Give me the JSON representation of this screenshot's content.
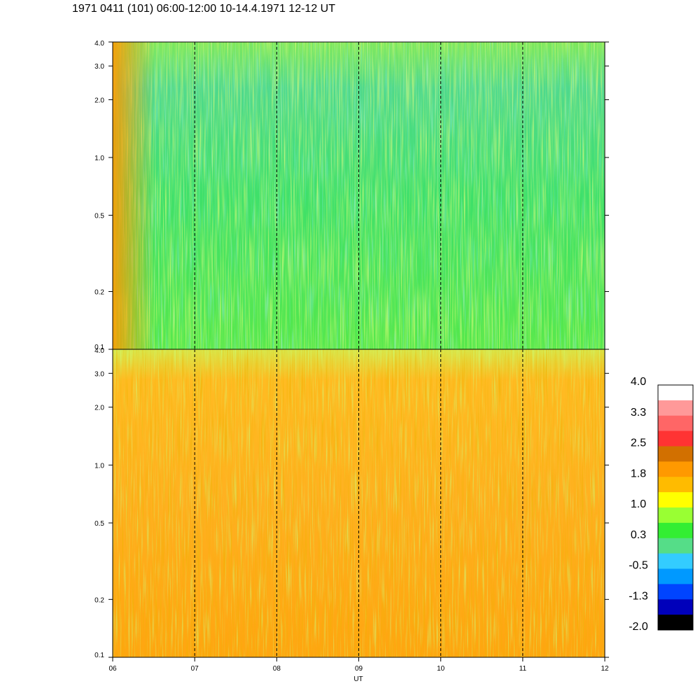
{
  "title": "1971 0411 (101) 06:00-12:00 10-14.4.1971  12-12 UT",
  "chart_data": [
    {
      "type": "heatmap",
      "name": "upper-spectrogram",
      "x_range": [
        "06",
        "12"
      ],
      "y_scale": "log",
      "y_range": [
        0.1,
        4.0
      ],
      "y_ticks": [
        {
          "value": 0.1,
          "label": "0.1"
        },
        {
          "value": 0.2,
          "label": "0.2"
        },
        {
          "value": 0.5,
          "label": "0.5"
        },
        {
          "value": 1.0,
          "label": "1.0"
        },
        {
          "value": 2.0,
          "label": "2.0"
        },
        {
          "value": 3.0,
          "label": "3.0"
        },
        {
          "value": 4.0,
          "label": "4.0"
        }
      ],
      "dominant_levels": [
        0.3,
        1.0
      ],
      "hour_marks": [
        7,
        8,
        9,
        10,
        11
      ]
    },
    {
      "type": "heatmap",
      "name": "lower-spectrogram",
      "x_range": [
        "06",
        "12"
      ],
      "y_scale": "log",
      "y_range": [
        0.1,
        4.0
      ],
      "y_ticks": [
        {
          "value": 0.1,
          "label": "0.1"
        },
        {
          "value": 0.2,
          "label": "0.2"
        },
        {
          "value": 0.5,
          "label": "0.5"
        },
        {
          "value": 1.0,
          "label": "1.0"
        },
        {
          "value": 2.0,
          "label": "2.0"
        },
        {
          "value": 3.0,
          "label": "3.0"
        },
        {
          "value": 4.0,
          "label": "4.0"
        }
      ],
      "dominant_levels": [
        1.8,
        2.5
      ],
      "hour_marks": [
        7,
        8,
        9,
        10,
        11
      ]
    }
  ],
  "x_axis": {
    "label": "UT",
    "ticks": [
      {
        "value": 6,
        "label": "06"
      },
      {
        "value": 7,
        "label": "07"
      },
      {
        "value": 8,
        "label": "08"
      },
      {
        "value": 9,
        "label": "09"
      },
      {
        "value": 10,
        "label": "10"
      },
      {
        "value": 11,
        "label": "11"
      },
      {
        "value": 12,
        "label": "12"
      }
    ]
  },
  "colorbar": {
    "labels": [
      "4.0",
      "3.3",
      "2.5",
      "1.8",
      "1.0",
      "0.3",
      "-0.5",
      "-1.3",
      "-2.0"
    ],
    "colors_top_to_bottom": [
      "#ffffff",
      "#ff9999",
      "#ff6666",
      "#ff3333",
      "#d27000",
      "#ff9900",
      "#ffbb00",
      "#ffff00",
      "#99ff33",
      "#33ee33",
      "#55dd88",
      "#33ccff",
      "#0099ff",
      "#0044ff",
      "#0000bb",
      "#000000"
    ]
  }
}
